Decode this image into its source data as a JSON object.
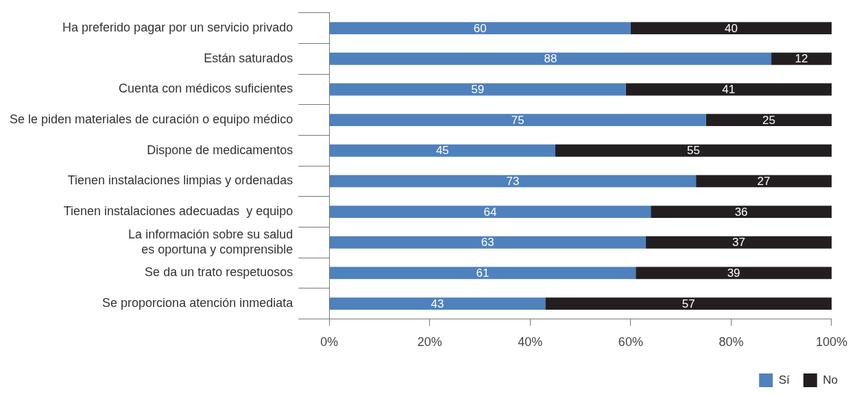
{
  "chart_data": {
    "type": "bar",
    "orientation": "horizontal",
    "stacked": true,
    "categories": [
      "Ha preferido pagar por un servicio privado",
      "Están saturados",
      "Cuenta con médicos suficientes",
      "Se le piden materiales de curación o equipo médico",
      "Dispone de medicamentos",
      "Tienen instalaciones limpias y ordenadas",
      "Tienen instalaciones adecuadas  y equipo",
      "La información sobre su salud\nes oportuna y comprensible",
      "Se da un trato respetuosos",
      "Se proporciona atención inmediata"
    ],
    "series": [
      {
        "name": "Sí",
        "color": "#4f81bd",
        "values": [
          60,
          88,
          59,
          75,
          45,
          73,
          64,
          63,
          61,
          43
        ]
      },
      {
        "name": "No",
        "color": "#231f20",
        "values": [
          40,
          12,
          41,
          25,
          55,
          27,
          36,
          37,
          39,
          57
        ]
      }
    ],
    "xlim": [
      0,
      100
    ],
    "xticks": [
      {
        "value": 0,
        "label": "0%"
      },
      {
        "value": 20,
        "label": "20%"
      },
      {
        "value": 40,
        "label": "40%"
      },
      {
        "value": 60,
        "label": "60%"
      },
      {
        "value": 80,
        "label": "80%"
      },
      {
        "value": 100,
        "label": "100%"
      }
    ],
    "data_labels": true,
    "grid": false,
    "legend": "bottom right"
  }
}
